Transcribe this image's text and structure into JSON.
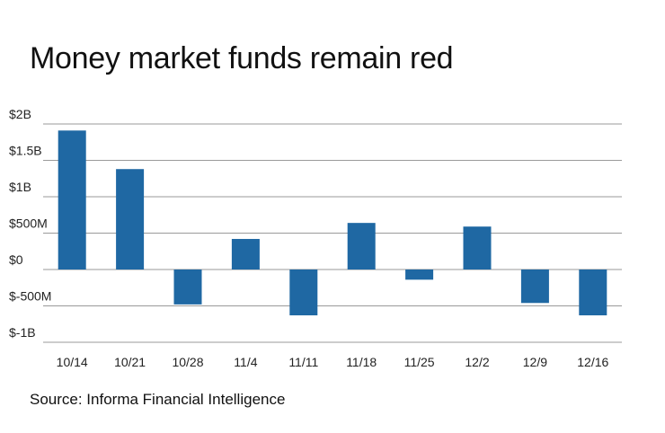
{
  "chart_data": {
    "type": "bar",
    "title": "Money market funds remain red",
    "source": "Source: Informa Financial Intelligence",
    "categories": [
      "10/14",
      "10/21",
      "10/28",
      "11/4",
      "11/11",
      "11/18",
      "11/25",
      "12/2",
      "12/9",
      "12/16"
    ],
    "values": [
      1.91,
      1.38,
      -0.48,
      0.42,
      -0.63,
      0.64,
      -0.14,
      0.59,
      -0.46,
      -0.63
    ],
    "value_unit": "billions of dollars",
    "yticks": [
      {
        "value": 2,
        "label": "$2B"
      },
      {
        "value": 1.5,
        "label": "$1.5B"
      },
      {
        "value": 1,
        "label": "$1B"
      },
      {
        "value": 0.5,
        "label": "$500M"
      },
      {
        "value": 0,
        "label": "$0"
      },
      {
        "value": -0.5,
        "label": "$-500M"
      },
      {
        "value": -1,
        "label": "$-1B"
      }
    ],
    "ylim": [
      -1,
      2
    ],
    "grid": true,
    "bar_color": "#1f68a3",
    "grid_color": "#9a9a9a"
  }
}
